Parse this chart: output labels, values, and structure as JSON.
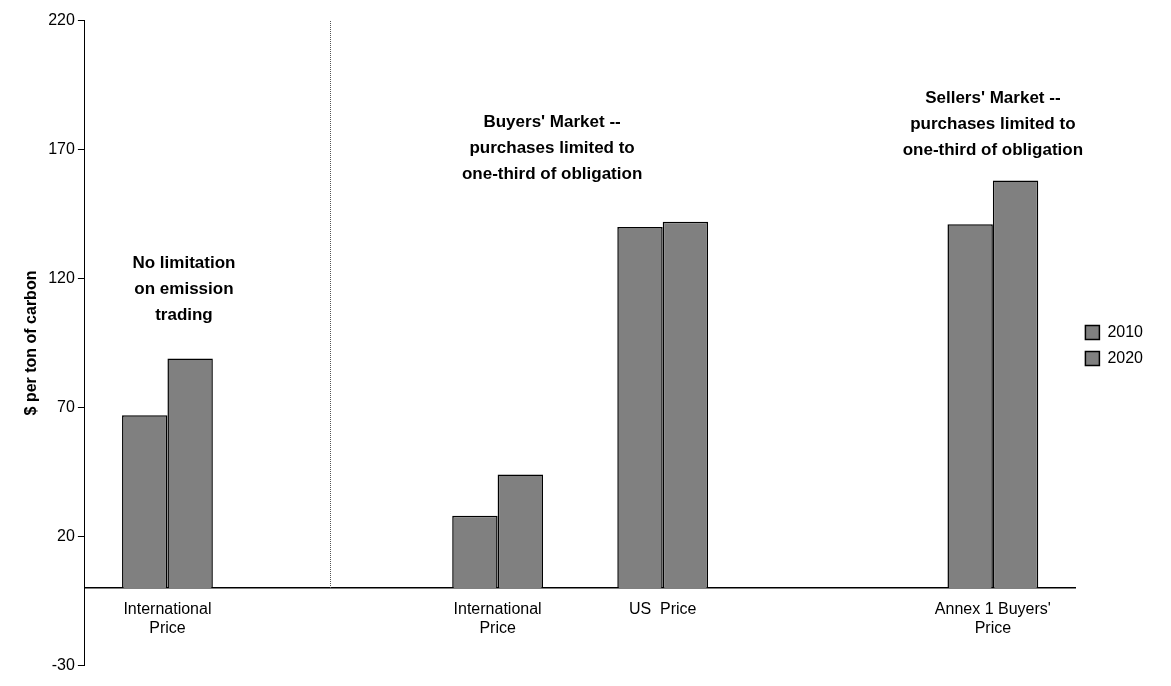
{
  "chart_data": {
    "type": "bar",
    "ylabel": "$ per ton of carbon",
    "categories": [
      "International Price",
      null,
      "International Price",
      "US  Price",
      null,
      "Annex 1 Buyers' Price"
    ],
    "series": [
      {
        "name": "2010",
        "color": "#808080",
        "values": [
          67,
          null,
          28,
          140,
          null,
          141
        ]
      },
      {
        "name": "2020",
        "color": "#808080",
        "values": [
          89,
          null,
          44,
          142,
          null,
          158
        ]
      }
    ],
    "ylim": [
      -30,
      220
    ],
    "yticks": [
      -30,
      20,
      70,
      120,
      170,
      220
    ],
    "annotations": [
      "No limitation on emission trading",
      "Buyers' Market -- purchases limited to one-third of obligation",
      "Sellers' Market -- purchases limited to one-third of obligation"
    ],
    "legend": "right"
  }
}
